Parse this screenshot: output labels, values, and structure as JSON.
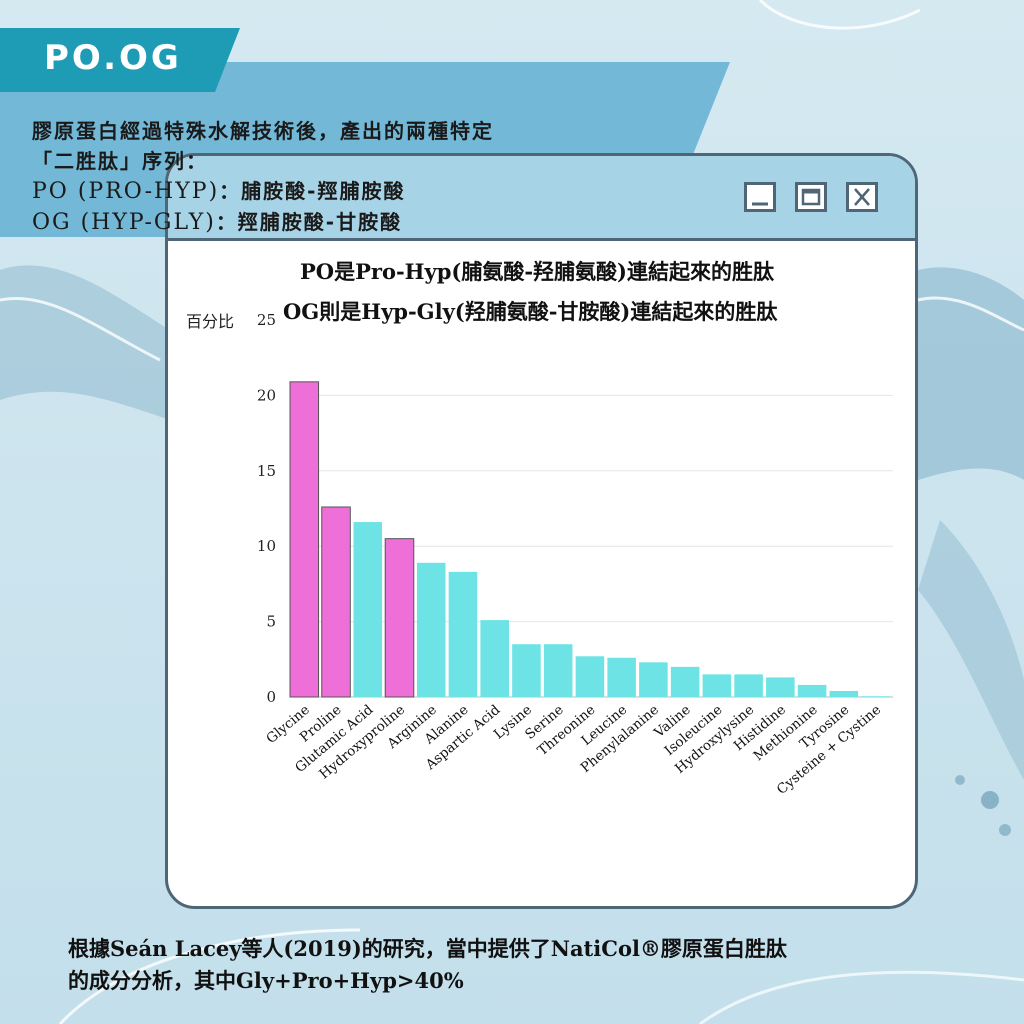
{
  "header": {
    "tag": "PO.OG",
    "intro_line1": "膠原蛋白經過特殊水解技術後，產出的兩種特定",
    "intro_line2": "「二胜肽」序列：",
    "intro_line3_code": "PO (PRO-HYP)",
    "intro_line3_text": "：脯胺酸-羥脯胺酸",
    "intro_line4_code": "OG (HYP-GLY)",
    "intro_line4_text": "：羥脯胺酸-甘胺酸"
  },
  "window": {
    "buttons": [
      {
        "name": "minimize-icon"
      },
      {
        "name": "maximize-icon"
      },
      {
        "name": "close-icon"
      }
    ]
  },
  "colors": {
    "highlight": "#ee6fd8",
    "normal": "#6de3e6",
    "banner": "#73b8d6",
    "tag": "#1e9cb5",
    "window_bar": "#a7d3e6"
  },
  "chart_data": {
    "type": "bar",
    "title_line1": "PO是Pro-Hyp(脯氨酸-羟脯氨酸)連結起來的胜肽",
    "title_line2": "OG則是Hyp-Gly(羟脯氨酸-甘胺酸)連結起來的胜肽",
    "ylabel": "百分比",
    "ylim": [
      0,
      25
    ],
    "yticks": [
      0,
      5,
      10,
      15,
      20,
      25
    ],
    "grid": true,
    "categories": [
      "Glycine",
      "Proline",
      "Glutamic Acid",
      "Hydroxyproline",
      "Arginine",
      "Alanine",
      "Aspartic Acid",
      "Lysine",
      "Serine",
      "Threonine",
      "Leucine",
      "Phenylalanine",
      "Valine",
      "Isoleucine",
      "Hydroxylysine",
      "Histidine",
      "Methionine",
      "Tyrosine",
      "Cysteine + Cystine"
    ],
    "values": [
      20.9,
      12.6,
      11.6,
      10.5,
      8.9,
      8.3,
      5.1,
      3.5,
      3.5,
      2.7,
      2.6,
      2.3,
      2.0,
      1.5,
      1.5,
      1.3,
      0.8,
      0.4,
      0.05
    ],
    "highlighted": [
      "Glycine",
      "Proline",
      "Hydroxyproline"
    ]
  },
  "footer": {
    "line1": "根據Seán Lacey等人(2019)的研究，當中提供了NatiCol®膠原蛋白胜肽",
    "line2": "的成分分析，其中Gly+Pro+Hyp>40%"
  }
}
